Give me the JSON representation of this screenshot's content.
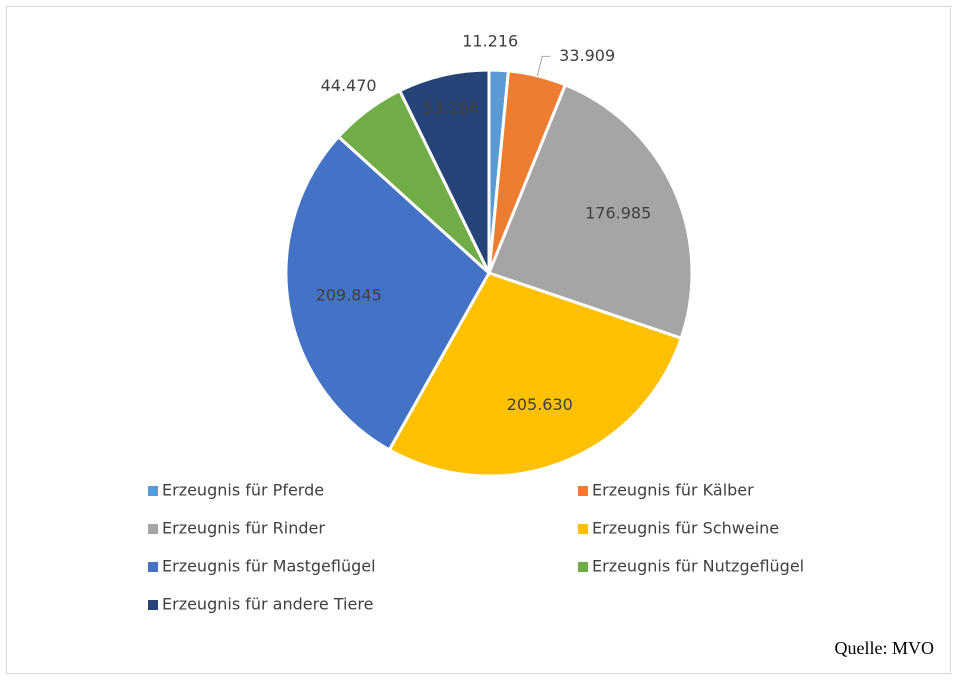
{
  "chart_data": {
    "type": "pie",
    "categories": [
      "Erzeugnis für Pferde",
      "Erzeugnis für Kälber",
      "Erzeugnis für Rinder",
      "Erzeugnis für Schweine",
      "Erzeugnis für Mastgeflügel",
      "Erzeugnis für Nutzgeflügel",
      "Erzeugnis für andere Tiere"
    ],
    "values": [
      11216,
      33909,
      176985,
      205630,
      209845,
      44470,
      53284
    ],
    "value_labels": [
      "11.216",
      "33.909",
      "176.985",
      "205.630",
      "209.845",
      "44.470",
      "53.284"
    ],
    "colors": [
      "#5b9bd5",
      "#ed7d31",
      "#a5a5a5",
      "#ffc000",
      "#4472c4",
      "#70ad47",
      "#264478"
    ],
    "source": "Quelle:  MVO"
  }
}
